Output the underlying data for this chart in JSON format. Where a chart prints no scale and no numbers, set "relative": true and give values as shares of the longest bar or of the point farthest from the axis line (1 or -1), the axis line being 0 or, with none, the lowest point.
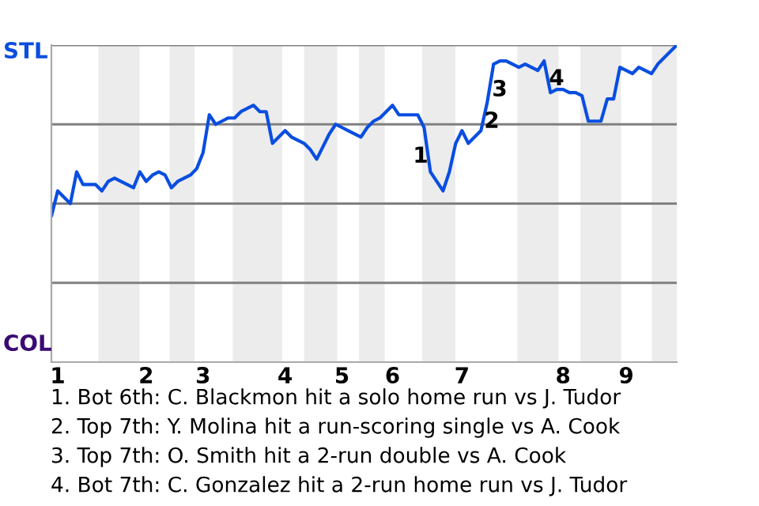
{
  "chart_data": {
    "type": "line",
    "relative": true,
    "categories": [
      null,
      "1",
      null,
      null,
      null,
      null,
      null,
      null,
      null,
      null,
      null,
      null,
      null,
      null,
      null,
      "2",
      null,
      null,
      null,
      null,
      null,
      null,
      null,
      null,
      "3",
      null,
      null,
      null,
      null,
      null,
      null,
      null,
      null,
      null,
      null,
      null,
      null,
      "4",
      null,
      null,
      null,
      null,
      null,
      null,
      null,
      null,
      "5",
      null,
      null,
      null,
      null,
      null,
      null,
      null,
      "6",
      null,
      null,
      null,
      null,
      null,
      null,
      null,
      null,
      null,
      null,
      "7",
      null,
      null,
      null,
      null,
      null,
      null,
      null,
      null,
      null,
      null,
      null,
      null,
      null,
      null,
      null,
      "8",
      null,
      null,
      null,
      null,
      null,
      null,
      null,
      null,
      null,
      "9",
      null,
      null,
      null,
      null,
      null,
      null,
      null,
      null
    ],
    "series": [
      {
        "color": "#0a4ee0",
        "values": [
          0.46,
          0.54,
          0.52,
          0.5,
          0.6,
          0.56,
          0.56,
          0.56,
          0.54,
          0.57,
          0.58,
          0.57,
          0.56,
          0.55,
          0.6,
          0.57,
          0.59,
          0.6,
          0.59,
          0.55,
          0.57,
          0.58,
          0.59,
          0.61,
          0.66,
          0.78,
          0.75,
          0.76,
          0.77,
          0.77,
          0.79,
          0.8,
          0.81,
          0.79,
          0.79,
          0.69,
          0.71,
          0.73,
          0.71,
          0.7,
          0.69,
          0.67,
          0.64,
          0.68,
          0.72,
          0.75,
          0.74,
          0.73,
          0.72,
          0.71,
          0.74,
          0.76,
          0.77,
          0.79,
          0.81,
          0.78,
          0.78,
          0.78,
          0.78,
          0.74,
          0.6,
          0.57,
          0.54,
          0.6,
          0.69,
          0.73,
          0.69,
          0.71,
          0.73,
          0.82,
          0.94,
          0.95,
          0.95,
          0.94,
          0.93,
          0.94,
          0.93,
          0.92,
          0.95,
          0.85,
          0.86,
          0.86,
          0.85,
          0.85,
          0.84,
          0.76,
          0.76,
          0.76,
          0.83,
          0.83,
          0.93,
          0.92,
          0.91,
          0.93,
          0.92,
          0.91,
          0.94,
          0.96,
          0.98,
          1
        ]
      }
    ],
    "grid": "y",
    "annotations": [
      "STL",
      "COL",
      "1",
      "2",
      "3",
      "4",
      "1. Bot 6th: C. Blackmon hit a solo home run vs J. Tudor",
      "2. Top 7th: Y. Molina hit a run-scoring single vs A. Cook",
      "3. Top 7th: O. Smith hit a 2-run double vs A. Cook",
      "4. Bot 7th: C. Gonzalez hit a 2-run home run vs J. Tudor"
    ]
  }
}
